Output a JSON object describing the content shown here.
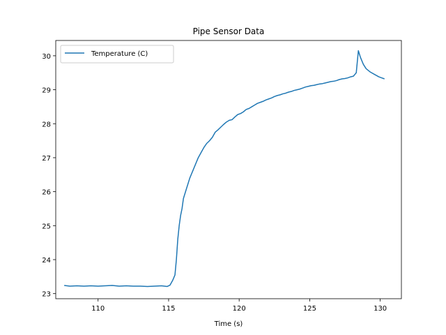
{
  "chart_data": {
    "type": "line",
    "title": "Pipe Sensor Data",
    "xlabel": "Time (s)",
    "ylabel": "",
    "xlim": [
      107.0,
      131.5
    ],
    "ylim": [
      22.85,
      30.45
    ],
    "xticks": [
      110,
      115,
      120,
      125,
      130
    ],
    "yticks": [
      23,
      24,
      25,
      26,
      27,
      28,
      29,
      30
    ],
    "grid": false,
    "legend": "top-left",
    "series": [
      {
        "name": "Temperature (C)",
        "color": "#1f77b4",
        "x": [
          107.6,
          108.0,
          108.5,
          109.0,
          109.5,
          110.0,
          110.5,
          111.0,
          111.5,
          112.0,
          112.5,
          113.0,
          113.5,
          114.0,
          114.5,
          114.9,
          115.1,
          115.3,
          115.45,
          115.55,
          115.65,
          115.75,
          115.85,
          115.95,
          116.05,
          116.2,
          116.35,
          116.5,
          116.7,
          116.9,
          117.1,
          117.3,
          117.5,
          117.7,
          117.9,
          118.1,
          118.3,
          118.5,
          118.7,
          118.9,
          119.1,
          119.3,
          119.5,
          119.7,
          119.9,
          120.1,
          120.3,
          120.5,
          120.7,
          120.9,
          121.1,
          121.3,
          121.5,
          121.7,
          121.9,
          122.1,
          122.3,
          122.5,
          122.7,
          122.9,
          123.1,
          123.3,
          123.5,
          123.7,
          123.9,
          124.1,
          124.3,
          124.5,
          124.7,
          124.9,
          125.1,
          125.3,
          125.5,
          125.7,
          125.9,
          126.1,
          126.3,
          126.5,
          126.7,
          126.9,
          127.1,
          127.3,
          127.5,
          127.7,
          127.9,
          128.1,
          128.3,
          128.45,
          128.6,
          128.8,
          129.0,
          129.3,
          129.6,
          129.9,
          130.1,
          130.3
        ],
        "y": [
          23.24,
          23.22,
          23.23,
          23.22,
          23.23,
          23.22,
          23.23,
          23.24,
          23.22,
          23.23,
          23.22,
          23.22,
          23.21,
          23.22,
          23.23,
          23.21,
          23.25,
          23.4,
          23.55,
          24.0,
          24.6,
          25.0,
          25.3,
          25.5,
          25.8,
          26.0,
          26.2,
          26.4,
          26.6,
          26.8,
          27.0,
          27.15,
          27.3,
          27.42,
          27.5,
          27.6,
          27.75,
          27.82,
          27.9,
          27.98,
          28.05,
          28.1,
          28.12,
          28.2,
          28.27,
          28.3,
          28.35,
          28.42,
          28.45,
          28.5,
          28.55,
          28.6,
          28.63,
          28.66,
          28.7,
          28.73,
          28.76,
          28.8,
          28.83,
          28.85,
          28.88,
          28.9,
          28.93,
          28.95,
          28.98,
          29.0,
          29.02,
          29.05,
          29.08,
          29.1,
          29.12,
          29.13,
          29.15,
          29.17,
          29.18,
          29.2,
          29.22,
          29.24,
          29.25,
          29.27,
          29.3,
          29.32,
          29.33,
          29.35,
          29.38,
          29.4,
          29.5,
          30.15,
          29.95,
          29.75,
          29.62,
          29.52,
          29.45,
          29.38,
          29.35,
          29.32
        ]
      }
    ]
  }
}
